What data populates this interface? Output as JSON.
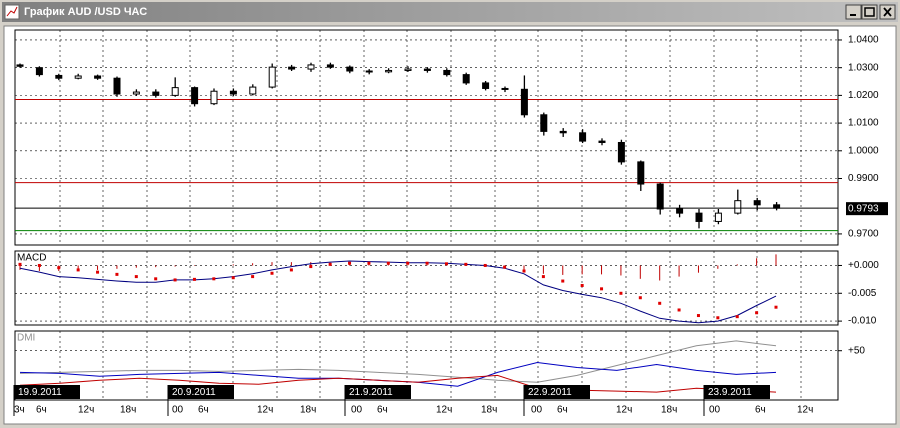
{
  "window": {
    "title": "График AUD /USD  ЧАС"
  },
  "time_axis": {
    "dates": [
      "19.9.2011",
      "20.9.2011",
      "21.9.2011",
      "22.9.2011",
      "23.9.2011"
    ],
    "hours": [
      "3ч",
      "6ч",
      "12ч",
      "18ч",
      "00",
      "6ч",
      "12ч",
      "18ч",
      "00",
      "6ч",
      "12ч",
      "18ч",
      "00",
      "6ч",
      "12ч",
      "18ч",
      "00",
      "6ч",
      "12ч"
    ]
  },
  "chart_data": [
    {
      "type": "candlestick",
      "open": [
        1.031,
        1.03,
        1.0272,
        1.0262,
        1.027,
        1.0262,
        1.0205,
        1.0212,
        1.02,
        1.0228,
        1.017,
        1.0215,
        1.0205,
        1.023,
        1.0302,
        1.0295,
        1.031,
        1.0302,
        1.0288,
        1.0285,
        1.029,
        1.0295,
        1.029,
        1.0275,
        1.0245,
        1.0225,
        1.0222,
        1.013,
        1.007,
        1.0065,
        1.0035,
        1.003,
        0.996,
        0.988,
        0.979,
        0.9775,
        0.9745,
        0.9775,
        0.982,
        0.9805
      ],
      "high": [
        1.0315,
        1.0305,
        1.0278,
        1.0278,
        1.0275,
        1.0268,
        1.0222,
        1.0222,
        1.0265,
        1.0232,
        1.0225,
        1.0225,
        1.024,
        1.0315,
        1.031,
        1.0318,
        1.0318,
        1.0308,
        1.0295,
        1.0298,
        1.0305,
        1.0302,
        1.0298,
        1.0282,
        1.0252,
        1.0232,
        1.0272,
        1.0138,
        1.0082,
        1.0078,
        1.0045,
        1.004,
        0.9965,
        0.9885,
        0.9805,
        0.979,
        0.979,
        0.986,
        0.983,
        0.9815
      ],
      "low": [
        1.03,
        1.0268,
        1.0255,
        1.0258,
        1.0256,
        1.0195,
        1.0198,
        1.0192,
        1.0195,
        1.016,
        1.0165,
        1.0198,
        1.02,
        1.0225,
        1.0288,
        1.0285,
        1.0296,
        1.028,
        1.0276,
        1.028,
        1.0285,
        1.0282,
        1.0268,
        1.0238,
        1.0218,
        1.0212,
        1.012,
        1.0055,
        1.005,
        1.0028,
        1.002,
        0.995,
        0.9855,
        0.977,
        0.976,
        0.972,
        0.9735,
        0.977,
        0.9785,
        0.9785
      ],
      "close": [
        1.0305,
        1.0275,
        1.0262,
        1.027,
        1.0262,
        1.0205,
        1.0212,
        1.02,
        1.0228,
        1.017,
        1.0215,
        1.0205,
        1.023,
        1.0302,
        1.0295,
        1.031,
        1.0302,
        1.0288,
        1.0285,
        1.029,
        1.0295,
        1.029,
        1.0275,
        1.0245,
        1.0225,
        1.0222,
        1.013,
        1.007,
        1.0065,
        1.0035,
        1.003,
        0.996,
        0.988,
        0.979,
        0.9775,
        0.9745,
        0.9775,
        0.982,
        0.9805,
        0.9793
      ],
      "ylim": [
        0.966,
        1.0436
      ],
      "yticks": [
        {
          "value": 1.04,
          "label": "1.0400"
        },
        {
          "value": 1.03,
          "label": "1.0300"
        },
        {
          "value": 1.02,
          "label": "1.0200"
        },
        {
          "value": 1.01,
          "label": "1.0100"
        },
        {
          "value": 1.0,
          "label": "1.0000"
        },
        {
          "value": 0.99,
          "label": "0.9900"
        },
        {
          "value": 0.97,
          "label": "0.9700"
        }
      ],
      "levels": [
        {
          "value": 1.0185,
          "color": "#c00000"
        },
        {
          "value": 0.9885,
          "color": "#c00000"
        },
        {
          "value": 0.9712,
          "color": "#008000"
        }
      ],
      "last_price": {
        "value": 0.9793,
        "label": "0.9793"
      },
      "grid": true
    },
    {
      "type": "line",
      "title": "MACD",
      "ylim": [
        -0.0107,
        0.0026
      ],
      "yticks": [
        {
          "value": 0,
          "label": "+0.000"
        },
        {
          "value": -0.005,
          "label": "-0.005"
        },
        {
          "value": -0.01,
          "label": "-0.010"
        }
      ],
      "series": [
        {
          "kind": "bar",
          "color": "#c00000",
          "values": [
            -0.0008,
            -0.001,
            -0.001,
            -0.0009,
            -0.0008,
            -0.0006,
            -0.0004,
            -0.0003,
            -0.0002,
            -0.0001,
            0,
            0.0002,
            0.0004,
            0.0006,
            0.0006,
            0.0006,
            0.0005,
            0.0004,
            0.0003,
            0.0002,
            0.0001,
            0.0001,
            0,
            0,
            -0.0002,
            -0.0005,
            -0.001,
            -0.0015,
            -0.0017,
            -0.0016,
            -0.0016,
            -0.0018,
            -0.0024,
            -0.0027,
            -0.002,
            -0.0013,
            -0.0006,
            0.0002,
            0.0013,
            0.002
          ]
        },
        {
          "kind": "line",
          "color": "#000080",
          "values": [
            -0.0005,
            -0.0012,
            -0.002,
            -0.0022,
            -0.0025,
            -0.0028,
            -0.003,
            -0.003,
            -0.0026,
            -0.0026,
            -0.0024,
            -0.002,
            -0.0015,
            -0.0008,
            -0.0002,
            0.0003,
            0.0006,
            0.0008,
            0.0007,
            0.0006,
            0.0005,
            0.0005,
            0.0004,
            0.0002,
            0,
            -0.0005,
            -0.0015,
            -0.0035,
            -0.0045,
            -0.0052,
            -0.0058,
            -0.0068,
            -0.0082,
            -0.0095,
            -0.01,
            -0.0103,
            -0.01,
            -0.009,
            -0.0072,
            -0.0055
          ]
        },
        {
          "kind": "dots",
          "color": "#e00000",
          "values": [
            0.0002,
            0,
            -0.0004,
            -0.0008,
            -0.0012,
            -0.0016,
            -0.002,
            -0.0024,
            -0.0026,
            -0.0025,
            -0.0024,
            -0.0022,
            -0.002,
            -0.0014,
            -0.0008,
            -0.0002,
            0.0002,
            0.0004,
            0.0004,
            0.0004,
            0.0004,
            0.0004,
            0.0003,
            0.0002,
            0,
            -0.0003,
            -0.001,
            -0.002,
            -0.0028,
            -0.0036,
            -0.0042,
            -0.005,
            -0.0058,
            -0.0068,
            -0.008,
            -0.009,
            -0.0094,
            -0.0092,
            -0.0085,
            -0.0075
          ]
        }
      ],
      "grid": true
    },
    {
      "type": "line",
      "title": "DMI",
      "ylim": [
        0,
        70
      ],
      "yticks": [
        {
          "value": 50,
          "label": "+50"
        }
      ],
      "series": [
        {
          "kind": "line",
          "color": "#909090",
          "values": [
            27,
            28,
            29,
            30,
            30,
            29,
            30,
            31,
            30,
            28,
            26,
            23,
            20,
            18,
            25,
            35,
            45,
            55,
            60,
            55
          ]
        },
        {
          "kind": "line",
          "color": "#0000c0",
          "values": [
            28,
            27,
            24,
            26,
            27,
            28,
            25,
            22,
            22,
            20,
            18,
            14,
            28,
            38,
            33,
            30,
            36,
            30,
            26,
            28
          ]
        },
        {
          "kind": "line",
          "color": "#c00000",
          "values": [
            15,
            17,
            20,
            22,
            20,
            17,
            16,
            20,
            22,
            20,
            18,
            22,
            25,
            12,
            10,
            9,
            8,
            12,
            10,
            8
          ]
        }
      ],
      "grid": true
    }
  ]
}
